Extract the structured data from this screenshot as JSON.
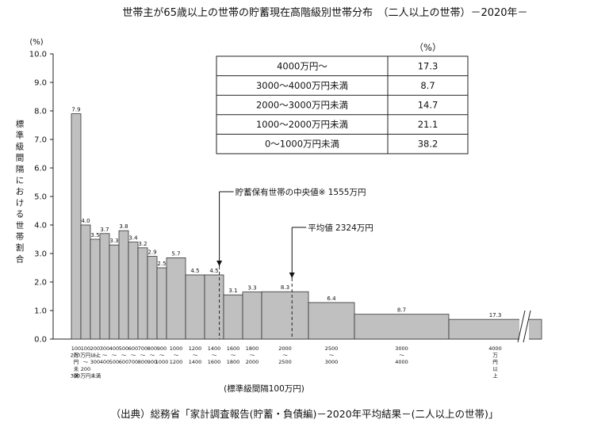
{
  "chart_data": {
    "type": "bar",
    "title": "世帯主が65歳以上の世帯の貯蓄現在高階級別世帯分布　（二人以上の世帯）－2020年－",
    "ylabel_unit": "(%)",
    "ylabel": "標準級間隔における世帯割合",
    "xlabel": "(標準級間隔100万円)",
    "source": "（出典）総務省「家計調査報告(貯蓄・負債編)－2020年平均結果－(二人以上の世帯)」",
    "ylim": [
      0,
      10
    ],
    "yticks": [
      "0.0",
      "1.0",
      "2.0",
      "3.0",
      "4.0",
      "5.0",
      "6.0",
      "7.0",
      "8.0",
      "9.0",
      "10.0"
    ],
    "bins": [
      {
        "from": 0,
        "to": 100,
        "value": 7.9,
        "label": "7.9"
      },
      {
        "from": 100,
        "to": 200,
        "value": 4.0,
        "label": "4.0"
      },
      {
        "from": 200,
        "to": 300,
        "value": 3.5,
        "label": "3.5"
      },
      {
        "from": 300,
        "to": 400,
        "value": 3.7,
        "label": "3.7"
      },
      {
        "from": 400,
        "to": 500,
        "value": 3.3,
        "label": "3.3"
      },
      {
        "from": 500,
        "to": 600,
        "value": 3.8,
        "label": "3.8"
      },
      {
        "from": 600,
        "to": 700,
        "value": 3.4,
        "label": "3.4"
      },
      {
        "from": 700,
        "to": 800,
        "value": 3.2,
        "label": "3.2"
      },
      {
        "from": 800,
        "to": 900,
        "value": 2.9,
        "label": "2.9"
      },
      {
        "from": 900,
        "to": 1000,
        "value": 2.5,
        "label": "2.5"
      },
      {
        "from": 1000,
        "to": 1200,
        "value": 2.85,
        "label": "5.7"
      },
      {
        "from": 1200,
        "to": 1400,
        "value": 2.25,
        "label": "4.5"
      },
      {
        "from": 1400,
        "to": 1600,
        "value": 2.25,
        "label": "4.5"
      },
      {
        "from": 1600,
        "to": 1800,
        "value": 1.55,
        "label": "3.1"
      },
      {
        "from": 1800,
        "to": 2000,
        "value": 1.65,
        "label": "3.3"
      },
      {
        "from": 2000,
        "to": 2500,
        "value": 1.66,
        "label": "8.3"
      },
      {
        "from": 2500,
        "to": 3000,
        "value": 1.28,
        "label": "6.4"
      },
      {
        "from": 3000,
        "to": 4000,
        "value": 0.87,
        "label": "8.7"
      },
      {
        "from": 4000,
        "to": null,
        "value": 0.69,
        "label": "17.3"
      }
    ],
    "x_tick_labels": [
      [
        "100",
        "万",
        "円",
        "未",
        "満"
      ],
      [
        "100",
        "200万円以上",
        "～",
        "200",
        "300万円未満"
      ],
      [
        "200",
        "～",
        "300"
      ],
      [
        "300",
        "～",
        "400"
      ],
      [
        "400",
        "～",
        "500"
      ],
      [
        "500",
        "～",
        "600"
      ],
      [
        "600",
        "～",
        "700"
      ],
      [
        "700",
        "～",
        "800"
      ],
      [
        "800",
        "～",
        "900"
      ],
      [
        "900",
        "～",
        "1000"
      ],
      [
        "1000",
        "～",
        "1200"
      ],
      [
        "1200",
        "～",
        "1400"
      ],
      [
        "1400",
        "～",
        "1600"
      ],
      [
        "1600",
        "～",
        "1800"
      ],
      [
        "1800",
        "～",
        "2000"
      ],
      [
        "2000",
        "～",
        "2500"
      ],
      [
        "2500",
        "～",
        "3000"
      ],
      [
        "3000",
        "～",
        "4000"
      ],
      [
        "4000",
        "万",
        "円",
        "以",
        "上"
      ]
    ],
    "markers": [
      {
        "label": "貯蓄保有世帯の中央値※ 1555万円",
        "x": 1555
      },
      {
        "label": "平均値 2324万円",
        "x": 2324
      }
    ],
    "inset_table": {
      "unit": "（%）",
      "rows": [
        {
          "label": "4000万円～",
          "value": "17.3"
        },
        {
          "label": "3000～4000万円未満",
          "value": "8.7"
        },
        {
          "label": "2000～3000万円未満",
          "value": "14.7"
        },
        {
          "label": "1000～2000万円未満",
          "value": "21.1"
        },
        {
          "label": "0～1000万円未満",
          "value": "38.2"
        }
      ]
    }
  }
}
